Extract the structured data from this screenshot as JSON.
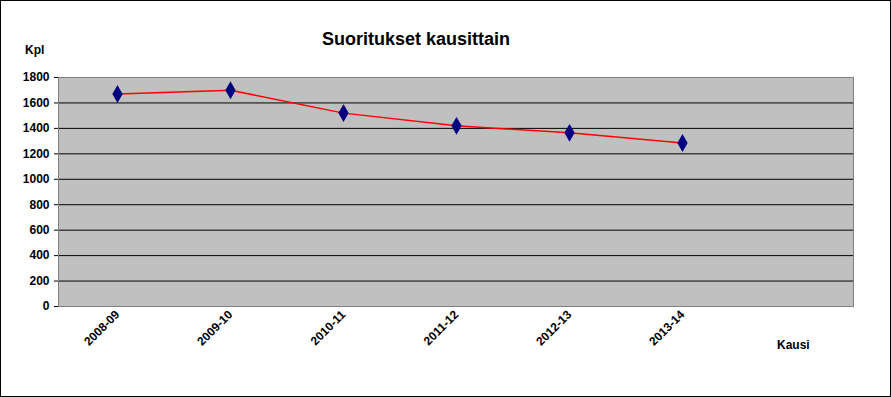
{
  "chart_data": {
    "type": "line",
    "title": "Suoritukset kausittain",
    "x_label": "Kausi",
    "y_label": "Kpl",
    "categories": [
      "2008-09",
      "2009-10",
      "2010-11",
      "2011-12",
      "2012-13",
      "2013-14",
      null
    ],
    "series": [
      {
        "name": "Suoritukset",
        "color": "#ff0000",
        "marker": "diamond",
        "values": [
          1670,
          1700,
          1520,
          1420,
          1365,
          1285,
          null
        ]
      }
    ],
    "ylim": [
      0,
      1800
    ],
    "yticks": [
      0,
      200,
      400,
      600,
      800,
      1000,
      1200,
      1400,
      1600,
      1800
    ],
    "grid": true,
    "legend": false
  }
}
